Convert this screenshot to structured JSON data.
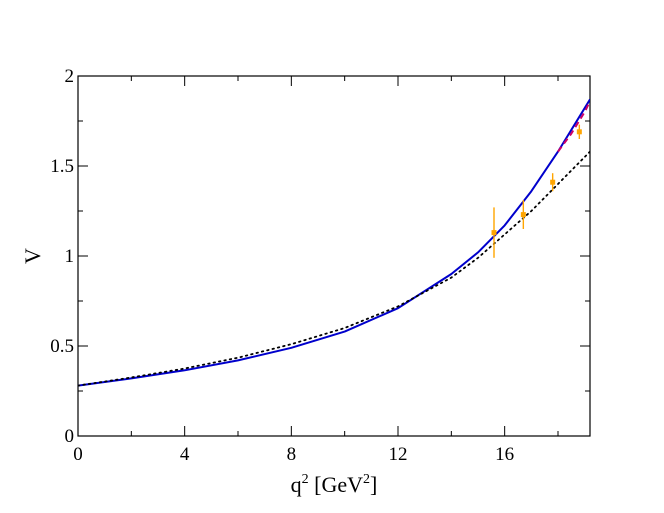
{
  "chart_data": {
    "type": "line",
    "title": "",
    "xlabel": {
      "base": "q",
      "sup1": "2",
      "mid": " [GeV",
      "sup2": "2",
      "end": "]"
    },
    "ylabel": "V",
    "xlim": [
      0,
      19.2
    ],
    "ylim": [
      0,
      2
    ],
    "x_ticks": [
      0,
      4,
      8,
      12,
      16
    ],
    "x_tick_labels": [
      "0",
      "4",
      "8",
      "12",
      "16"
    ],
    "y_ticks": [
      0,
      0.5,
      1,
      1.5,
      2
    ],
    "y_tick_labels": [
      "0",
      "0.5",
      "1",
      "1.5",
      "2"
    ],
    "grid": false,
    "legend": "none",
    "series": [
      {
        "style": "solid",
        "color": "#0000cc",
        "x": [
          0,
          2,
          4,
          6,
          8,
          10,
          12,
          14,
          15,
          16,
          17,
          18,
          19.2
        ],
        "y": [
          0.28,
          0.32,
          0.365,
          0.42,
          0.49,
          0.58,
          0.71,
          0.9,
          1.02,
          1.17,
          1.36,
          1.58,
          1.87
        ]
      },
      {
        "style": "dashed",
        "color": "#cc0066",
        "x": [
          18.0,
          18.5,
          19.0,
          19.2
        ],
        "y": [
          1.58,
          1.68,
          1.8,
          1.86
        ]
      },
      {
        "style": "dotted",
        "color": "#000000",
        "x": [
          0,
          2,
          4,
          6,
          8,
          10,
          12,
          14,
          15,
          16,
          17,
          18,
          19.2
        ],
        "y": [
          0.28,
          0.325,
          0.375,
          0.435,
          0.51,
          0.6,
          0.72,
          0.88,
          0.99,
          1.12,
          1.25,
          1.4,
          1.58
        ]
      },
      {
        "style": "points",
        "color": "#ffa500",
        "x": [
          15.6,
          16.7,
          17.8,
          18.8
        ],
        "y": [
          1.13,
          1.23,
          1.41,
          1.69
        ],
        "yerr": [
          0.14,
          0.08,
          0.05,
          0.04
        ]
      }
    ]
  }
}
